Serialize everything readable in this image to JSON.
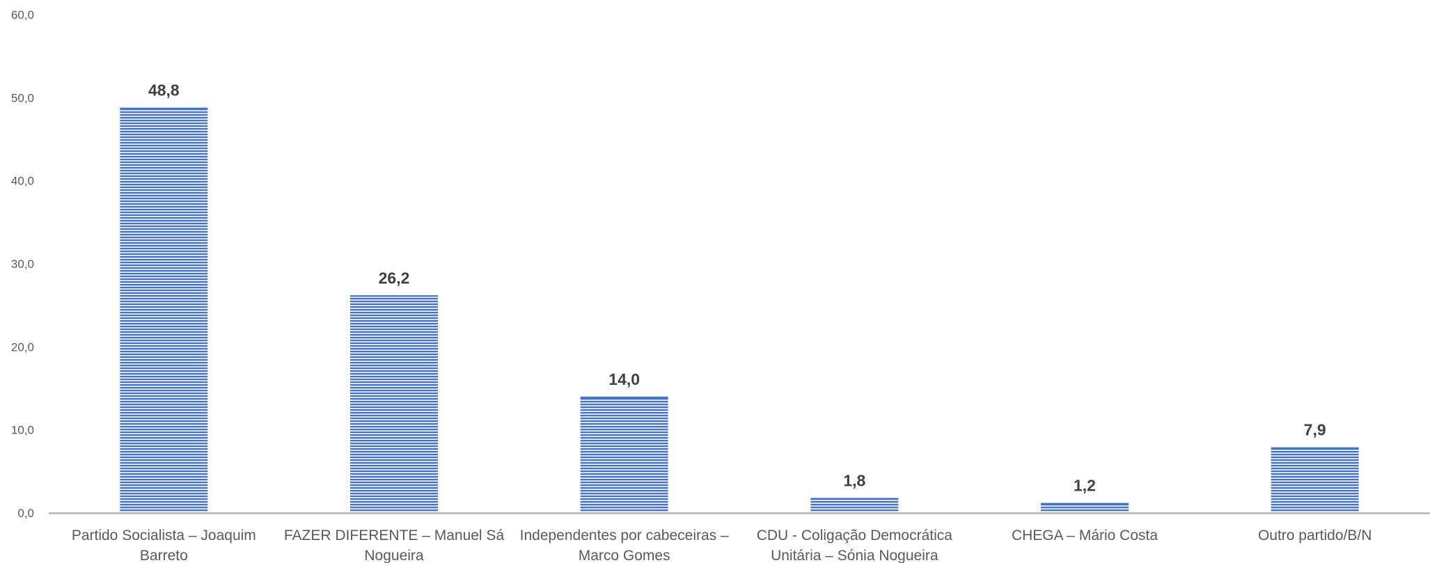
{
  "chart_data": {
    "type": "bar",
    "categories": [
      [
        "Partido Socialista – Joaquim",
        "Barreto"
      ],
      [
        "FAZER DIFERENTE – Manuel Sá",
        "Nogueira"
      ],
      [
        "Independentes por cabeceiras –",
        "Marco Gomes"
      ],
      [
        "CDU - Coligação Democrática",
        "Unitária – Sónia Nogueira"
      ],
      [
        "CHEGA – Mário Costa"
      ],
      [
        "Outro partido/B/N"
      ]
    ],
    "values": [
      48.8,
      26.2,
      14.0,
      1.8,
      1.2,
      7.9
    ],
    "value_labels": [
      "48,8",
      "26,2",
      "14,0",
      "1,8",
      "1,2",
      "7,9"
    ],
    "yticks": [
      "0,0",
      "10,0",
      "20,0",
      "30,0",
      "40,0",
      "50,0",
      "60,0"
    ],
    "ylim": [
      0,
      60
    ],
    "title": "",
    "xlabel": "",
    "ylabel": "",
    "grid": false,
    "legend": "none",
    "bar_color": "#4472C4",
    "bar_fill": "horizontal-stripes"
  }
}
